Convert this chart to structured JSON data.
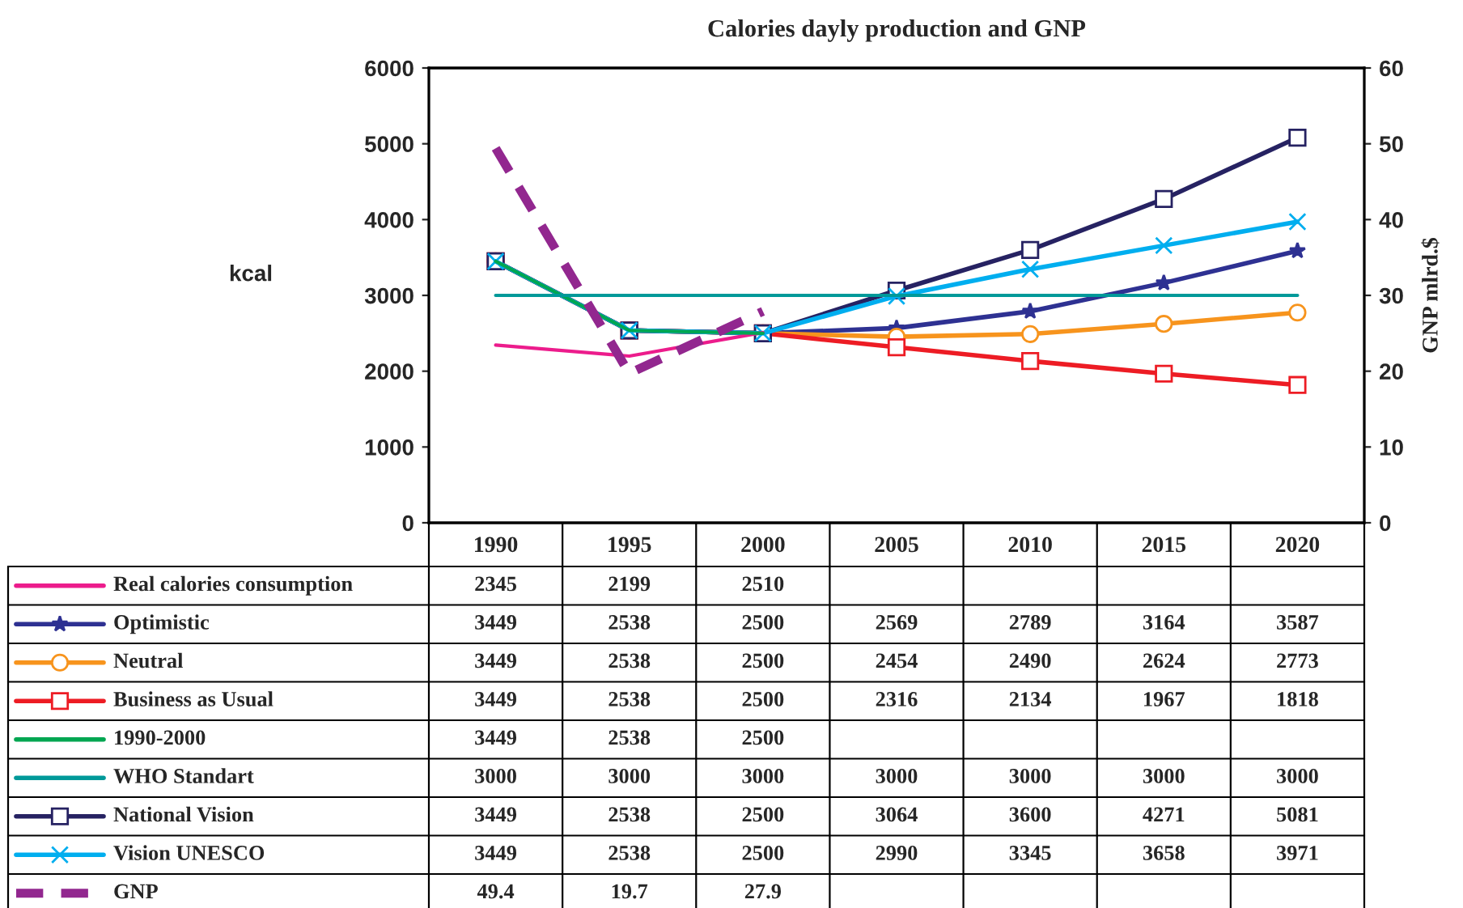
{
  "chart_data": {
    "type": "line",
    "title": "Calories dayly production and GNP",
    "ylabel": "kcal",
    "y2label": "GNP mlrd.$",
    "categories": [
      "1990",
      "1995",
      "2000",
      "2005",
      "2010",
      "2015",
      "2020"
    ],
    "ylim": [
      0,
      6000
    ],
    "yticks": [
      0,
      1000,
      2000,
      3000,
      4000,
      5000,
      6000
    ],
    "y2lim": [
      0,
      60
    ],
    "y2ticks": [
      0,
      10,
      20,
      30,
      40,
      50,
      60
    ],
    "data_labels": true,
    "legend": "bottom left",
    "grid": false,
    "series": [
      {
        "name": "Real calories consumption",
        "color": "#ec1c8c",
        "marker": "none",
        "line_style": "solid",
        "values": [
          2345,
          2199,
          2510,
          null,
          null,
          null,
          null
        ]
      },
      {
        "name": "Optimistic",
        "color": "#2e3192",
        "marker": "star",
        "line_style": "solid",
        "values": [
          3449,
          2538,
          2500,
          2569,
          2789,
          3164,
          3587
        ]
      },
      {
        "name": "Neutral",
        "color": "#f7941d",
        "marker": "circle",
        "line_style": "solid",
        "values": [
          3449,
          2538,
          2500,
          2454,
          2490,
          2624,
          2773
        ]
      },
      {
        "name": "Business as Usual",
        "color": "#ed1c24",
        "marker": "square",
        "line_style": "solid",
        "values": [
          3449,
          2538,
          2500,
          2316,
          2134,
          1967,
          1818
        ]
      },
      {
        "name": "1990-2000",
        "color": "#00a651",
        "marker": "none",
        "line_style": "solid",
        "values": [
          3449,
          2538,
          2500,
          null,
          null,
          null,
          null
        ]
      },
      {
        "name": "WHO Standart",
        "color": "#009999",
        "marker": "none",
        "line_style": "solid",
        "values": [
          3000,
          3000,
          3000,
          3000,
          3000,
          3000,
          3000
        ]
      },
      {
        "name": "National Vision",
        "color": "#262262",
        "marker": "square",
        "line_style": "solid",
        "values": [
          3449,
          2538,
          2500,
          3064,
          3600,
          4271,
          5081
        ]
      },
      {
        "name": "Vision UNESCO",
        "color": "#00aeef",
        "marker": "cross",
        "line_style": "solid",
        "values": [
          3449,
          2538,
          2500,
          2990,
          3345,
          3658,
          3971
        ]
      },
      {
        "name": "GNP",
        "color": "#92278f",
        "marker": "none",
        "line_style": "dashed",
        "axis": "y2",
        "values": [
          49.4,
          19.7,
          27.9,
          null,
          null,
          null,
          null
        ]
      }
    ]
  }
}
